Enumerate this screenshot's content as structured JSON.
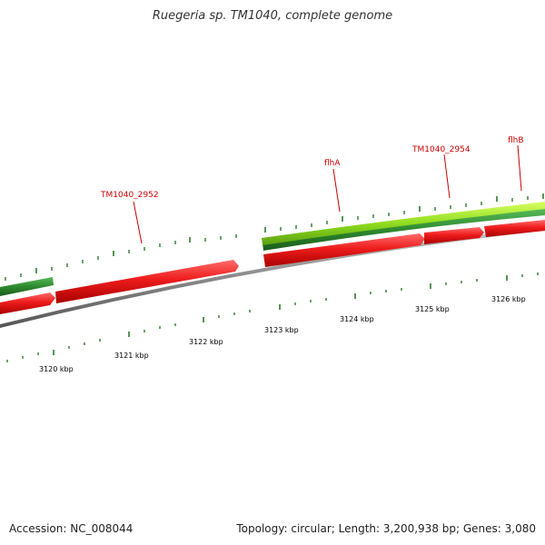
{
  "title": "Ruegeria sp. TM1040, complete genome",
  "footer": {
    "accession": "Accession: NC_008044",
    "summary": "Topology: circular; Length: 3,200,938 bp; Genes: 3,080"
  },
  "colors": {
    "forward_gene": "#ee1c1c",
    "reverse_gene": "#2f8a2f",
    "highlight_gene": "#8fdc1f",
    "backbone": "#8a8a8a",
    "tick": "#2f7a2f",
    "label": "#cc0000"
  },
  "scale_labels": [
    "3120 kbp",
    "3121 kbp",
    "3122 kbp",
    "3123 kbp",
    "3124 kbp",
    "3125 kbp",
    "3126 kbp"
  ],
  "gene_labels": [
    {
      "name": "TM1040_2952"
    },
    {
      "name": "flhA"
    },
    {
      "name": "TM1040_2954"
    },
    {
      "name": "flhB"
    }
  ]
}
